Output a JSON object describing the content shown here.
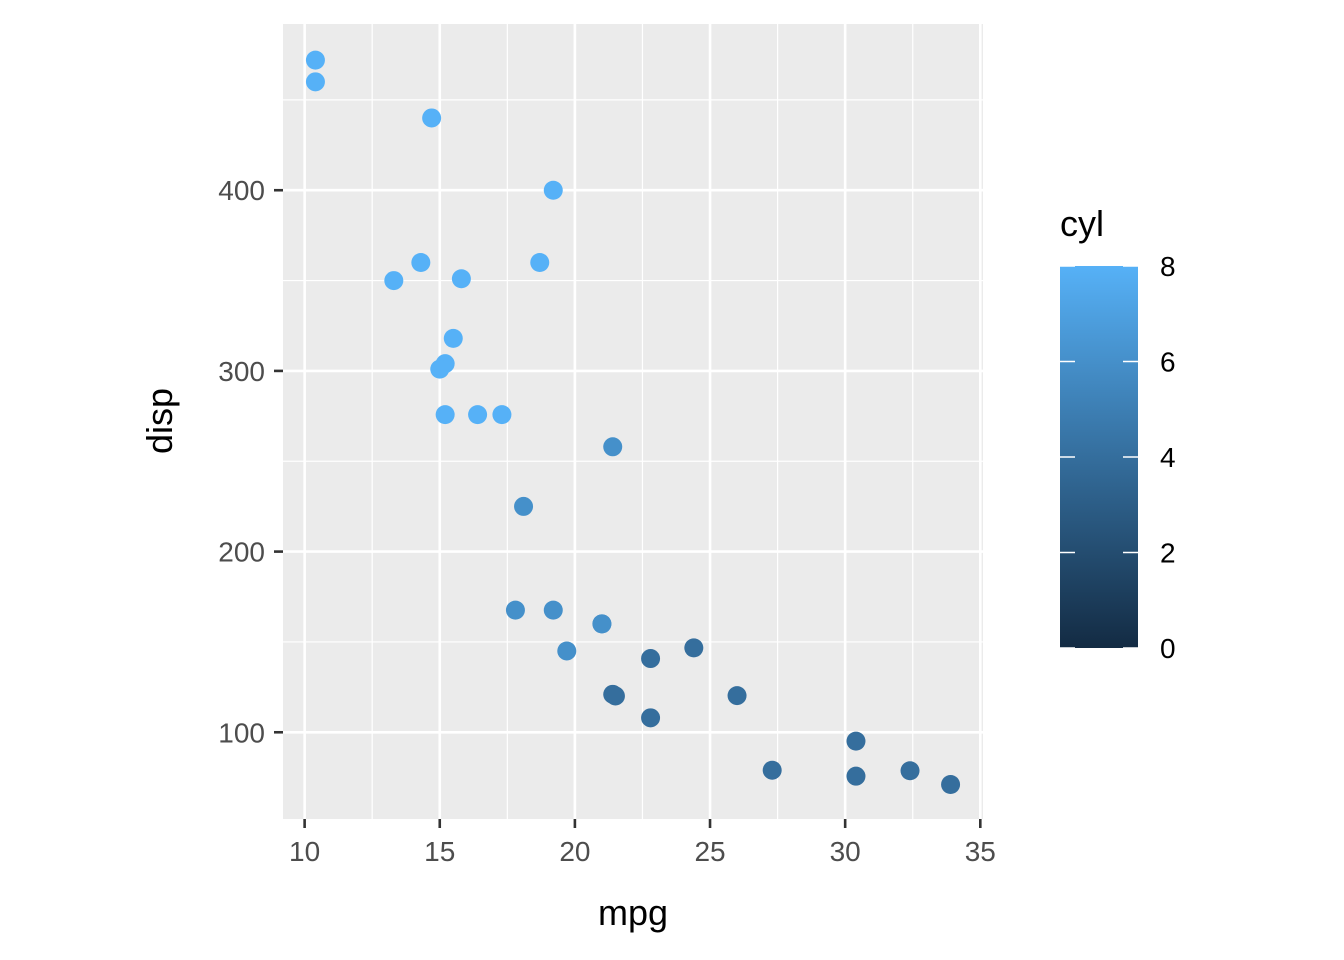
{
  "chart_data": {
    "type": "scatter",
    "title": "",
    "xlabel": "mpg",
    "ylabel": "disp",
    "xlim": [
      9.2,
      35.1
    ],
    "ylim": [
      52,
      492
    ],
    "x_ticks": [
      10,
      15,
      20,
      25,
      30,
      35
    ],
    "y_ticks": [
      100,
      200,
      300,
      400
    ],
    "x_tick_labels": [
      "10",
      "15",
      "20",
      "25",
      "30",
      "35"
    ],
    "y_tick_labels": [
      "100",
      "200",
      "300",
      "400"
    ],
    "grid": true,
    "legend": {
      "title": "cyl",
      "type": "colorbar",
      "position": "right",
      "range": [
        0,
        8
      ],
      "ticks": [
        0,
        2,
        4,
        6,
        8
      ],
      "tick_labels": [
        "0",
        "2",
        "4",
        "6",
        "8"
      ],
      "color_low": "#132B43",
      "color_high": "#56B1F7"
    },
    "points": [
      {
        "x": 21.0,
        "y": 160,
        "cyl": 6
      },
      {
        "x": 21.0,
        "y": 160,
        "cyl": 6
      },
      {
        "x": 22.8,
        "y": 108,
        "cyl": 4
      },
      {
        "x": 21.4,
        "y": 258,
        "cyl": 6
      },
      {
        "x": 18.7,
        "y": 360,
        "cyl": 8
      },
      {
        "x": 18.1,
        "y": 225,
        "cyl": 6
      },
      {
        "x": 14.3,
        "y": 360,
        "cyl": 8
      },
      {
        "x": 24.4,
        "y": 146.7,
        "cyl": 4
      },
      {
        "x": 22.8,
        "y": 140.8,
        "cyl": 4
      },
      {
        "x": 19.2,
        "y": 167.6,
        "cyl": 6
      },
      {
        "x": 17.8,
        "y": 167.6,
        "cyl": 6
      },
      {
        "x": 16.4,
        "y": 275.8,
        "cyl": 8
      },
      {
        "x": 17.3,
        "y": 275.8,
        "cyl": 8
      },
      {
        "x": 15.2,
        "y": 275.8,
        "cyl": 8
      },
      {
        "x": 10.4,
        "y": 472,
        "cyl": 8
      },
      {
        "x": 10.4,
        "y": 460,
        "cyl": 8
      },
      {
        "x": 14.7,
        "y": 440,
        "cyl": 8
      },
      {
        "x": 32.4,
        "y": 78.7,
        "cyl": 4
      },
      {
        "x": 30.4,
        "y": 75.7,
        "cyl": 4
      },
      {
        "x": 33.9,
        "y": 71.1,
        "cyl": 4
      },
      {
        "x": 21.5,
        "y": 120.1,
        "cyl": 4
      },
      {
        "x": 15.5,
        "y": 318,
        "cyl": 8
      },
      {
        "x": 15.2,
        "y": 304,
        "cyl": 8
      },
      {
        "x": 13.3,
        "y": 350,
        "cyl": 8
      },
      {
        "x": 19.2,
        "y": 400,
        "cyl": 8
      },
      {
        "x": 27.3,
        "y": 79,
        "cyl": 4
      },
      {
        "x": 26.0,
        "y": 120.3,
        "cyl": 4
      },
      {
        "x": 30.4,
        "y": 95.1,
        "cyl": 4
      },
      {
        "x": 15.8,
        "y": 351,
        "cyl": 8
      },
      {
        "x": 19.7,
        "y": 145,
        "cyl": 6
      },
      {
        "x": 15.0,
        "y": 301,
        "cyl": 8
      },
      {
        "x": 21.4,
        "y": 121,
        "cyl": 4
      }
    ]
  }
}
